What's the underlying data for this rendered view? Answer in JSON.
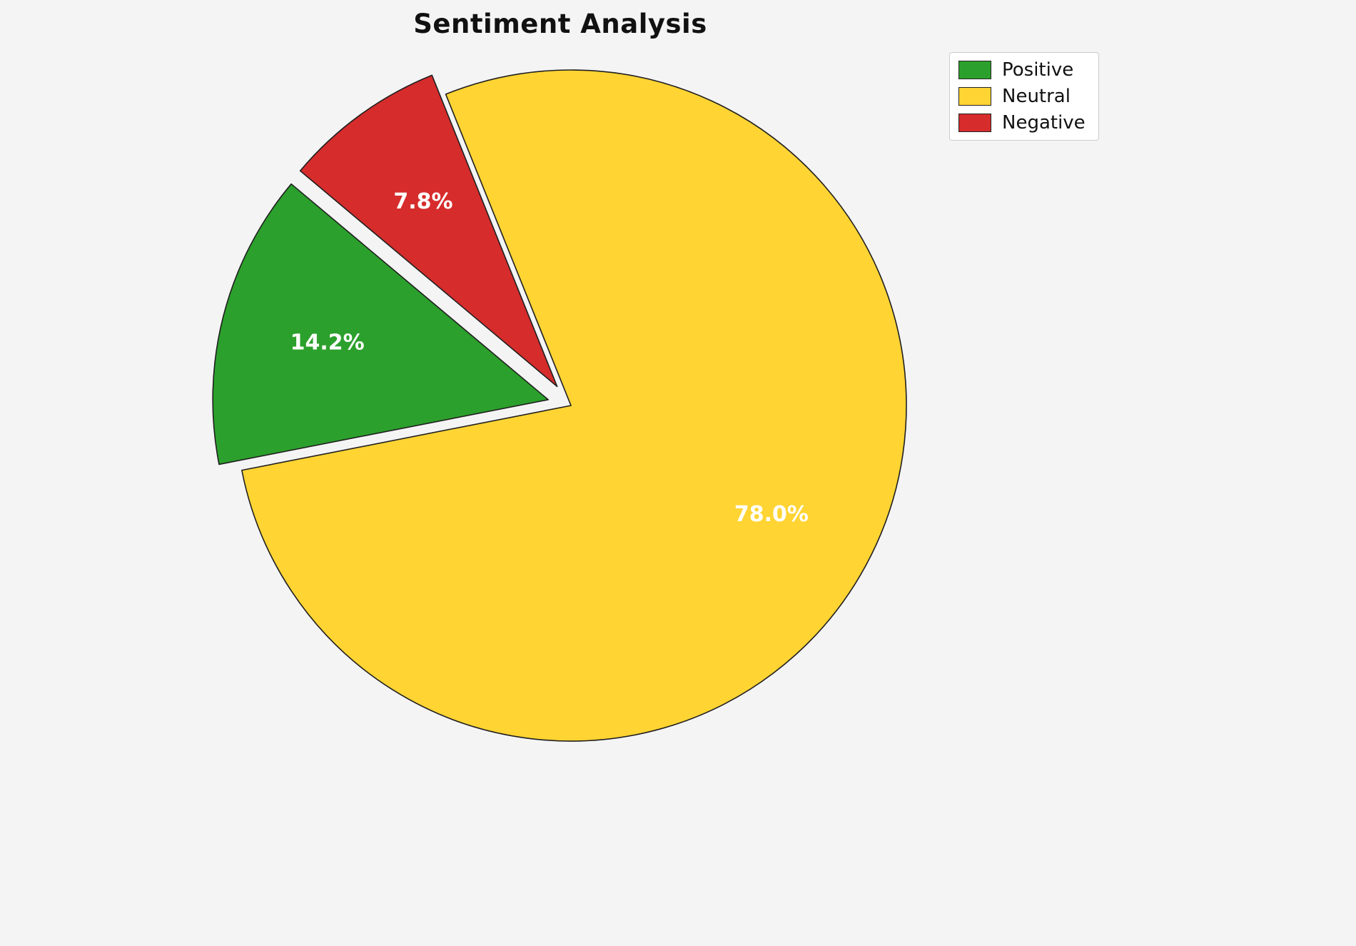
{
  "page": {
    "background_color": "#f5f4f5"
  },
  "chart_data": {
    "type": "pie",
    "title": "Sentiment Analysis",
    "categories": [
      "Positive",
      "Neutral",
      "Negative"
    ],
    "values": [
      14.2,
      78.0,
      7.8
    ],
    "pct_labels": [
      "14.2%",
      "78.0%",
      "7.8%"
    ],
    "colors": [
      "#2CA02C",
      "#FFD433",
      "#D62C2C"
    ],
    "explode": [
      0.07,
      0,
      0.07
    ],
    "startangle": 140,
    "counterclock": true,
    "edge_color": "#1f1f1f",
    "edge_width": 1.6,
    "label_color": "#ffffff",
    "label_radius": 0.68,
    "legend_position": "upper right"
  }
}
